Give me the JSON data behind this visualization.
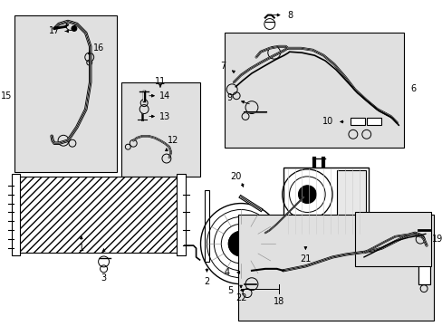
{
  "bg_color": "#ffffff",
  "lc": "#000000",
  "gray_fill": "#e0e0e0",
  "boxes": {
    "b15": [
      0.01,
      0.38,
      0.24,
      0.57
    ],
    "b11": [
      0.27,
      0.5,
      0.17,
      0.33
    ],
    "b6": [
      0.51,
      0.6,
      0.4,
      0.36
    ],
    "b4": [
      0.52,
      0.02,
      0.45,
      0.3
    ],
    "b19": [
      0.8,
      0.34,
      0.16,
      0.14
    ]
  }
}
